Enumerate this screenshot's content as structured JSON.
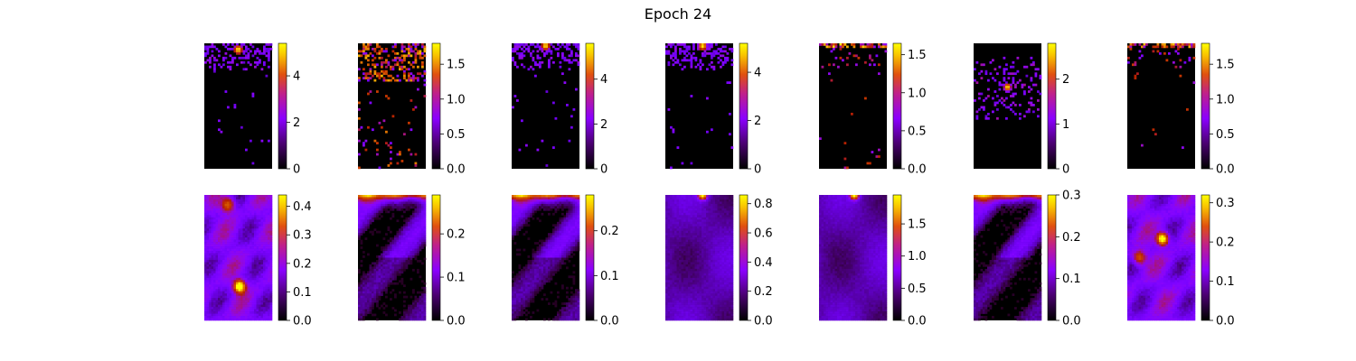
{
  "figure": {
    "title": "Epoch 24"
  },
  "chart_data": {
    "type": "heatmap",
    "title": "Epoch 24",
    "colormap": "gnuplot",
    "grid": false,
    "rows": [
      {
        "panels": [
          {
            "vmin": 0,
            "vmax": 5.4,
            "ticks": [
              "0",
              "2",
              "4"
            ],
            "tick_values": [
              0,
              2,
              4
            ],
            "pattern": "sparse-hot-top",
            "hotspot": [
              0.5,
              0.05
            ]
          },
          {
            "vmin": 0,
            "vmax": 1.8,
            "ticks": [
              "0.0",
              "0.5",
              "1.0",
              "1.5"
            ],
            "tick_values": [
              0,
              0.5,
              1.0,
              1.5
            ],
            "pattern": "sparse-spread",
            "hotspot": [
              0.2,
              0.2
            ]
          },
          {
            "vmin": 0,
            "vmax": 5.6,
            "ticks": [
              "0",
              "2",
              "4"
            ],
            "tick_values": [
              0,
              2,
              4
            ],
            "pattern": "sparse-hot-top",
            "hotspot": [
              0.5,
              0.02
            ]
          },
          {
            "vmin": 0,
            "vmax": 5.2,
            "ticks": [
              "0",
              "2",
              "4"
            ],
            "tick_values": [
              0,
              2,
              4
            ],
            "pattern": "sparse-hot-top",
            "hotspot": [
              0.55,
              0.02
            ]
          },
          {
            "vmin": 0,
            "vmax": 1.65,
            "ticks": [
              "0.0",
              "0.5",
              "1.0",
              "1.5"
            ],
            "tick_values": [
              0,
              0.5,
              1.0,
              1.5
            ],
            "pattern": "sparse-top-edge",
            "hotspot": [
              0.3,
              0.01
            ]
          },
          {
            "vmin": 0,
            "vmax": 2.8,
            "ticks": [
              "0",
              "1",
              "2"
            ],
            "tick_values": [
              0,
              1,
              2
            ],
            "pattern": "sparse-center",
            "hotspot": [
              0.5,
              0.35
            ]
          },
          {
            "vmin": 0,
            "vmax": 1.8,
            "ticks": [
              "0.0",
              "0.5",
              "1.0",
              "1.5"
            ],
            "tick_values": [
              0,
              0.5,
              1.0,
              1.5
            ],
            "pattern": "sparse-top-edge",
            "hotspot": [
              0.5,
              0.02
            ]
          }
        ]
      },
      {
        "panels": [
          {
            "vmin": 0,
            "vmax": 0.44,
            "ticks": [
              "0.0",
              "0.1",
              "0.2",
              "0.3",
              "0.4"
            ],
            "tick_values": [
              0,
              0.1,
              0.2,
              0.3,
              0.4
            ],
            "pattern": "smooth-blobs",
            "hotspot": [
              0.52,
              0.73
            ],
            "second": [
              0.35,
              0.08
            ]
          },
          {
            "vmin": 0,
            "vmax": 0.29,
            "ticks": [
              "0.0",
              "0.1",
              "0.2"
            ],
            "tick_values": [
              0,
              0.1,
              0.2
            ],
            "pattern": "smooth-top-band",
            "hotspot": [
              0.5,
              0.0
            ]
          },
          {
            "vmin": 0,
            "vmax": 0.28,
            "ticks": [
              "0.0",
              "0.1",
              "0.2"
            ],
            "tick_values": [
              0,
              0.1,
              0.2
            ],
            "pattern": "smooth-top-band",
            "hotspot": [
              0.5,
              0.0
            ]
          },
          {
            "vmin": 0,
            "vmax": 0.86,
            "ticks": [
              "0.0",
              "0.2",
              "0.4",
              "0.6",
              "0.8"
            ],
            "tick_values": [
              0,
              0.2,
              0.4,
              0.6,
              0.8
            ],
            "pattern": "smooth-top-spot",
            "hotspot": [
              0.55,
              0.0
            ]
          },
          {
            "vmin": 0,
            "vmax": 1.95,
            "ticks": [
              "0.0",
              "0.5",
              "1.0",
              "1.5"
            ],
            "tick_values": [
              0,
              0.5,
              1.0,
              1.5
            ],
            "pattern": "smooth-top-spot",
            "hotspot": [
              0.52,
              0.0
            ]
          },
          {
            "vmin": 0,
            "vmax": 0.3,
            "ticks": [
              "0.0",
              "0.1",
              "0.2",
              "0.3"
            ],
            "tick_values": [
              0,
              0.1,
              0.2,
              0.3
            ],
            "pattern": "smooth-top-band",
            "hotspot": [
              0.5,
              0.0
            ]
          },
          {
            "vmin": 0,
            "vmax": 0.32,
            "ticks": [
              "0.0",
              "0.1",
              "0.2",
              "0.3"
            ],
            "tick_values": [
              0,
              0.1,
              0.2,
              0.3
            ],
            "pattern": "smooth-blobs",
            "hotspot": [
              0.52,
              0.35
            ],
            "second": [
              0.18,
              0.5
            ]
          }
        ]
      }
    ]
  }
}
